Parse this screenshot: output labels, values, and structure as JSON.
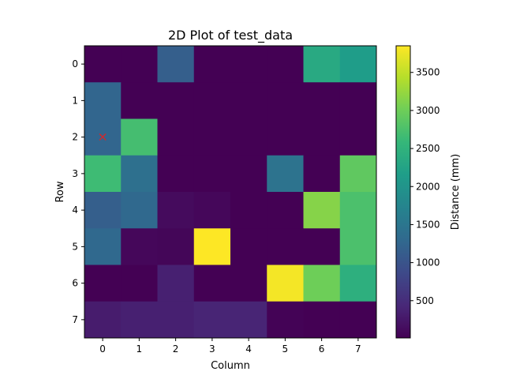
{
  "chart_data": {
    "type": "heatmap",
    "title": "2D Plot of test_data",
    "xlabel": "Column",
    "ylabel": "Row",
    "x_ticks": [
      "0",
      "1",
      "2",
      "3",
      "4",
      "5",
      "6",
      "7"
    ],
    "y_ticks": [
      "0",
      "1",
      "2",
      "3",
      "4",
      "5",
      "6",
      "7"
    ],
    "colormap": "viridis",
    "values": [
      [
        10,
        10,
        1150,
        10,
        10,
        10,
        2350,
        2150
      ],
      [
        1250,
        10,
        10,
        10,
        10,
        10,
        10,
        10
      ],
      [
        1250,
        2700,
        10,
        10,
        10,
        10,
        10,
        10
      ],
      [
        2650,
        1400,
        10,
        10,
        10,
        1450,
        10,
        2900
      ],
      [
        1150,
        1300,
        120,
        80,
        10,
        10,
        3150,
        2750
      ],
      [
        1300,
        80,
        60,
        3850,
        10,
        10,
        10,
        2750
      ],
      [
        10,
        10,
        350,
        10,
        10,
        3800,
        3000,
        2450
      ],
      [
        300,
        350,
        350,
        400,
        400,
        30,
        10,
        10
      ]
    ],
    "marker": {
      "symbol": "×",
      "color": "#d62728",
      "row": 2,
      "col": 0
    },
    "colorbar": {
      "label": "Distance (mm)",
      "min": 10,
      "max": 3850,
      "ticks": [
        500,
        1000,
        1500,
        2000,
        2500,
        3000,
        3500
      ],
      "tick_labels": [
        "500",
        "1000",
        "1500",
        "2000",
        "2500",
        "3000",
        "3500"
      ]
    }
  }
}
